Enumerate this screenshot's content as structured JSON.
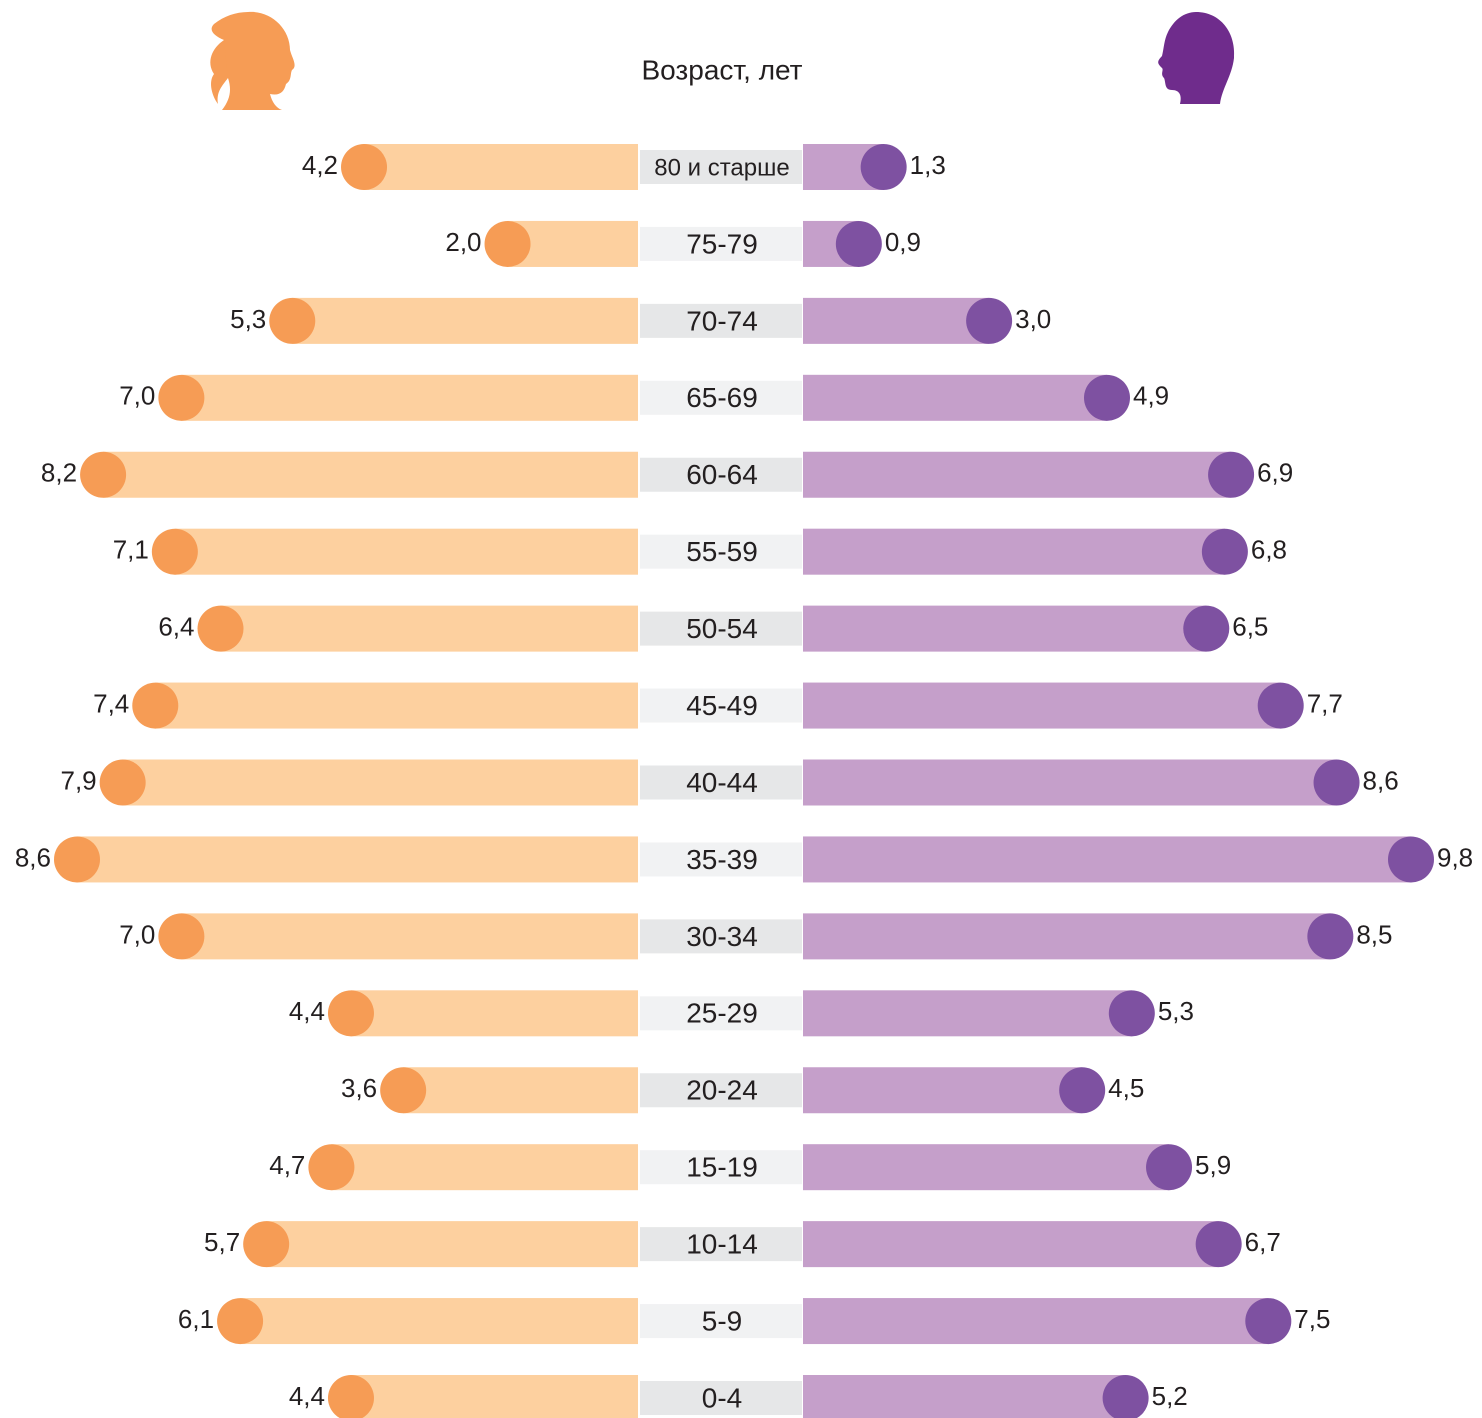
{
  "chart_data": {
    "type": "pyramid",
    "title": "Возраст, лет",
    "categories": [
      "80 и старше",
      "75-79",
      "70-74",
      "65-69",
      "60-64",
      "55-59",
      "50-54",
      "45-49",
      "40-44",
      "35-39",
      "30-34",
      "25-29",
      "20-24",
      "15-19",
      "10-14",
      "5-9",
      "0-4"
    ],
    "series": [
      {
        "color": "#fdd09f",
        "marker_color": "#f69c55",
        "values": [
          4.2,
          2.0,
          5.3,
          7.0,
          8.2,
          7.1,
          6.4,
          7.4,
          7.9,
          8.6,
          7.0,
          4.4,
          3.6,
          4.7,
          5.7,
          6.1,
          4.4
        ],
        "value_labels": [
          "4,2",
          "2,0",
          "5,3",
          "7,0",
          "8,2",
          "7,1",
          "6,4",
          "7,4",
          "7,9",
          "8,6",
          "7,0",
          "4,4",
          "3,6",
          "4,7",
          "5,7",
          "6,1",
          "4,4"
        ]
      },
      {
        "color": "#c59fca",
        "marker_color": "#7e51a1",
        "values": [
          1.3,
          0.9,
          3.0,
          4.9,
          6.9,
          6.8,
          6.5,
          7.7,
          8.6,
          9.8,
          8.5,
          5.3,
          4.5,
          5.9,
          6.7,
          7.5,
          5.2
        ],
        "value_labels": [
          "1,3",
          "0,9",
          "3,0",
          "4,9",
          "6,9",
          "6,8",
          "6,5",
          "7,7",
          "8,6",
          "9,8",
          "8,5",
          "5,3",
          "4,5",
          "5,9",
          "6,7",
          "7,5",
          "5,2"
        ]
      }
    ]
  }
}
